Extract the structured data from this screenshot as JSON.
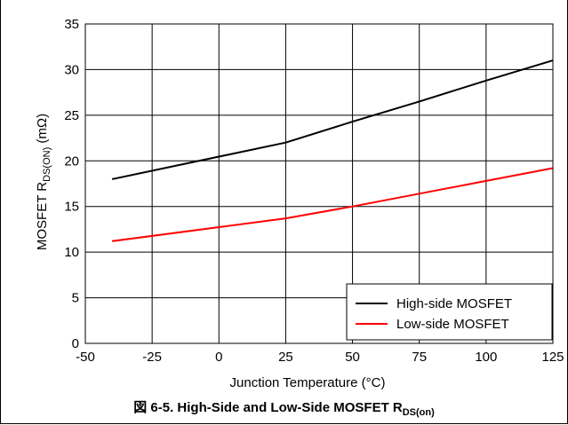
{
  "caption": {
    "prefix": "図 6-5. High-Side and Low-Side MOSFET R",
    "subscript": "DS(on)"
  },
  "colors": {
    "high_side": "#000000",
    "low_side": "#ff0000",
    "grid": "#000000"
  },
  "chart_data": {
    "type": "line",
    "xlabel": "Junction Temperature (°C)",
    "ylabel": {
      "prefix": "MOSFET R",
      "subscript": "DS(ON)",
      "suffix": " (mΩ)"
    },
    "xlim": [
      -50,
      125
    ],
    "ylim": [
      0,
      35
    ],
    "xticks": [
      -50,
      -25,
      0,
      25,
      50,
      75,
      100,
      125
    ],
    "yticks": [
      0,
      5,
      10,
      15,
      20,
      25,
      30,
      35
    ],
    "grid": true,
    "legend_position": "bottom-right",
    "series": [
      {
        "name": "High-side MOSFET",
        "color": "#000000",
        "x": [
          -40,
          25,
          50,
          75,
          100,
          125
        ],
        "y": [
          18,
          22,
          24.3,
          26.5,
          28.8,
          31
        ]
      },
      {
        "name": "Low-side MOSFET",
        "color": "#ff0000",
        "x": [
          -40,
          25,
          50,
          75,
          100,
          125
        ],
        "y": [
          11.2,
          13.7,
          15,
          16.4,
          17.8,
          19.2
        ]
      }
    ]
  }
}
